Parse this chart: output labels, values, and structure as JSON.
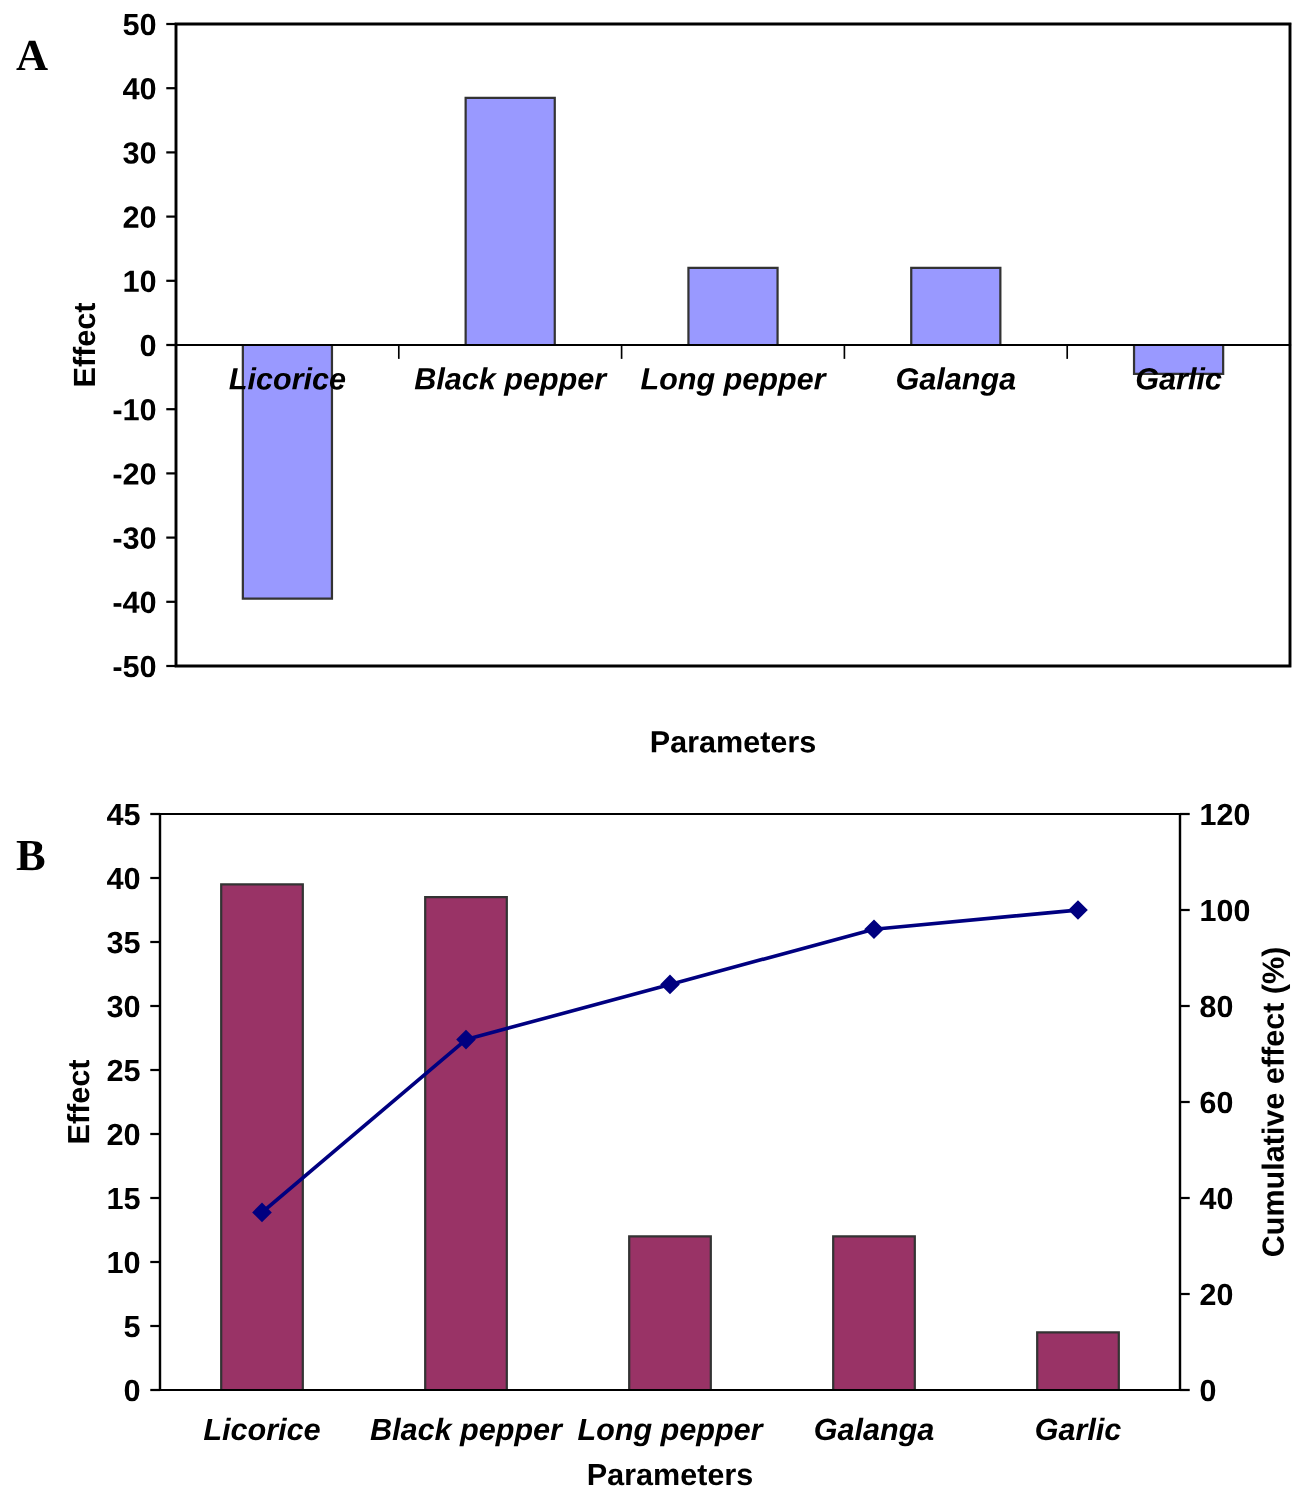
{
  "chart_data": [
    {
      "type": "bar",
      "annotations": [
        "A"
      ],
      "xlabel": "Parameters",
      "ylabel": "Effect",
      "categories": [
        "Licorice",
        "Black pepper",
        "Long pepper",
        "Galanga",
        "Garlic"
      ],
      "values": [
        -39.5,
        38.5,
        12,
        12,
        -4.5
      ],
      "color": "#9999ff",
      "ylim": [
        -50,
        50
      ],
      "yticks": [
        -50,
        -40,
        -30,
        -20,
        -10,
        0,
        10,
        20,
        30,
        40,
        50
      ],
      "grid": false,
      "legend": false
    },
    {
      "type": "bar",
      "annotations": [
        "B"
      ],
      "xlabel": "Parameters",
      "ylabel": "Effect",
      "y2label": "Cumulative effect (%)",
      "categories": [
        "Licorice",
        "Black pepper",
        "Long pepper",
        "Galanga",
        "Garlic"
      ],
      "series": [
        {
          "type": "bar",
          "color": "#993366",
          "values": [
            39.5,
            38.5,
            12,
            12,
            4.5
          ]
        },
        {
          "type": "line",
          "axis": "y2",
          "color": "#000080",
          "marker": "diamond",
          "line_style": "solid",
          "values": [
            37,
            73,
            84.5,
            96,
            100
          ]
        }
      ],
      "ylim": [
        0,
        45
      ],
      "yticks": [
        0,
        5,
        10,
        15,
        20,
        25,
        30,
        35,
        40,
        45
      ],
      "y2lim": [
        0,
        120
      ],
      "y2ticks": [
        0,
        20,
        40,
        60,
        80,
        100,
        120
      ],
      "grid": false,
      "legend": false
    }
  ]
}
